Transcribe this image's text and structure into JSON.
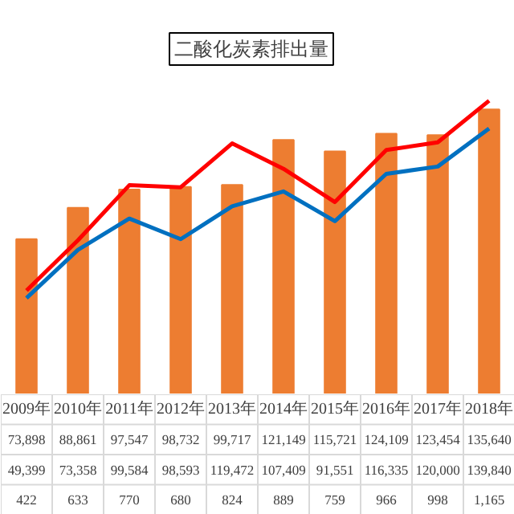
{
  "chart_data": {
    "type": "bar",
    "title": "二酸化炭素排出量",
    "categories": [
      "2009年",
      "2010年",
      "2011年",
      "2012年",
      "2013年",
      "2014年",
      "2015年",
      "2016年",
      "2017年",
      "2018年"
    ],
    "series": [
      {
        "color": "#ed7d31",
        "values": [
          73898,
          88861,
          97547,
          98732,
          99717,
          121149,
          115721,
          124109,
          123454,
          135640
        ],
        "value_labels": [
          "73,898",
          "88,861",
          "97,547",
          "98,732",
          "99,717",
          "121,149",
          "115,721",
          "124,109",
          "123,454",
          "135,640"
        ]
      },
      {
        "type": "line",
        "color": "#ff0000",
        "values": [
          49399,
          73358,
          99584,
          98593,
          119472,
          107409,
          91551,
          116335,
          120000,
          139840
        ],
        "value_labels": [
          "49,399",
          "73,358",
          "99,584",
          "98,593",
          "119,472",
          "107,409",
          "91,551",
          "116,335",
          "120,000",
          "139,840"
        ]
      },
      {
        "type": "line",
        "color": "#0070c0",
        "axis": "y2",
        "values": [
          422,
          633,
          770,
          680,
          824,
          889,
          759,
          966,
          998,
          1165
        ],
        "value_labels": [
          "422",
          "633",
          "770",
          "680",
          "824",
          "889",
          "759",
          "966",
          "998",
          "1,165"
        ]
      }
    ],
    "tick_labels": false
  }
}
